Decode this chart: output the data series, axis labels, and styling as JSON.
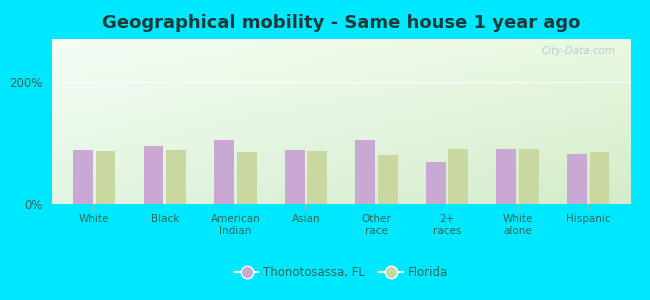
{
  "title": "Geographical mobility - Same house 1 year ago",
  "categories": [
    "White",
    "Black",
    "American\nIndian",
    "Asian",
    "Other\nrace",
    "2+\nraces",
    "White\nalone",
    "Hispanic"
  ],
  "thonotosassa_values": [
    88,
    95,
    105,
    88,
    105,
    68,
    90,
    82
  ],
  "florida_values": [
    87,
    88,
    85,
    87,
    80,
    90,
    90,
    85
  ],
  "bar_color_thono": "#c9a8d4",
  "bar_color_florida": "#c8d8a0",
  "background_outer": "#00e8ff",
  "ylim": [
    0,
    270
  ],
  "yticks": [
    0,
    200
  ],
  "ytick_labels": [
    "0%",
    "200%"
  ],
  "legend_label_thono": "Thonotosassa, FL",
  "legend_label_florida": "Florida",
  "title_fontsize": 13,
  "title_color": "#1a3a3a",
  "tick_label_color": "#336655",
  "watermark": "City-Data.com",
  "grad_top": "#f0faf0",
  "grad_bottom": "#ddeebb",
  "grad_left": "#eaf8f0",
  "grad_right": "#d8edbe"
}
